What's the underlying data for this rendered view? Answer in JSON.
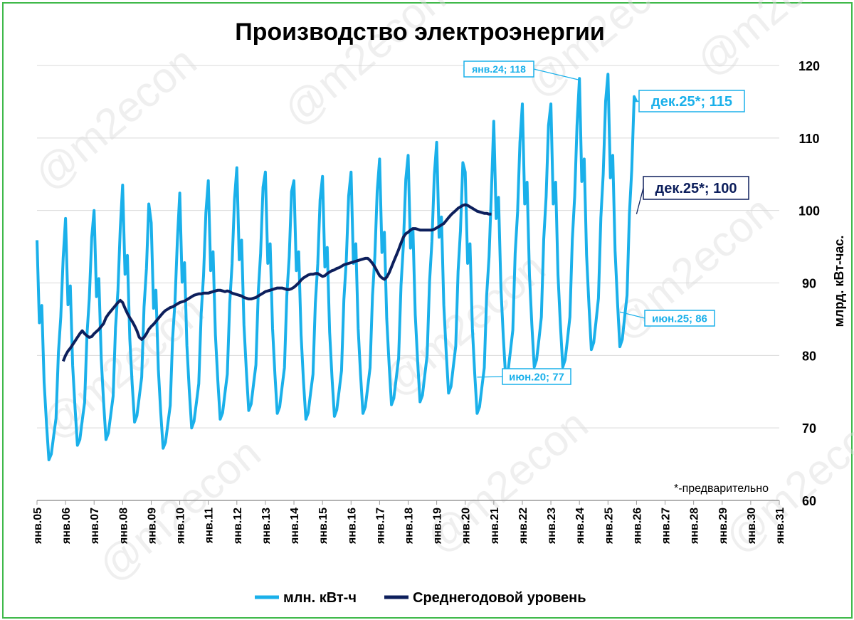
{
  "watermark": "@m2econ",
  "colors": {
    "monthly": "#1ab0ea",
    "average": "#0d1f5c",
    "grid": "#d9d9d9",
    "frame": "#3fb94a"
  },
  "chart_data": {
    "type": "line",
    "title": "Производство электроэнергии",
    "ylabel": "млрд. кВт-час.",
    "xlabel": "",
    "ylim": [
      60,
      120
    ],
    "yticks": [
      60,
      70,
      80,
      90,
      100,
      110,
      120
    ],
    "x_range_years": [
      2005,
      2031
    ],
    "x_tick_labels": [
      "янв.05",
      "янв.06",
      "янв.07",
      "янв.08",
      "янв.09",
      "янв.10",
      "янв.11",
      "янв.12",
      "янв.13",
      "янв.14",
      "янв.15",
      "янв.16",
      "янв.17",
      "янв.18",
      "янв.19",
      "янв.20",
      "янв.21",
      "янв.22",
      "янв.23",
      "янв.24",
      "янв.25",
      "янв.26",
      "янв.27",
      "янв.28",
      "янв.29",
      "янв.30",
      "янв.31"
    ],
    "legend": [
      "млн. кВт-ч",
      "Среднегодовой уровень"
    ],
    "legend_position": "bottom",
    "note": "*-предварительно",
    "series": [
      {
        "name": "млн. кВт-ч",
        "start": "2005-01",
        "seasonal_profile": [
          1.17,
          1.03,
          1.06,
          0.93,
          0.86,
          0.8,
          0.81,
          0.84,
          0.87,
          0.98,
          1.04,
          1.14
        ],
        "annual_levels": [
          82.0,
          84.5,
          85.5,
          88.5,
          84.0,
          87.5,
          89.0,
          90.5,
          90.0,
          89.0,
          89.5,
          90.0,
          91.5,
          92.0,
          93.5,
          90.0,
          96.0,
          98.0,
          98.0,
          101.0,
          101.5,
          101.0
        ],
        "last_value": 115
      },
      {
        "name": "Среднегодовой уровень",
        "start": "2005-12",
        "values": [
          79.2,
          80.0,
          80.6,
          81.0,
          81.5,
          82.0,
          82.5,
          83.0,
          83.4,
          83.0,
          82.7,
          82.5,
          82.6,
          83.0,
          83.3,
          83.6,
          84.0,
          84.4,
          85.2,
          85.7,
          86.1,
          86.5,
          86.9,
          87.3,
          87.6,
          87.3,
          86.5,
          85.8,
          85.2,
          84.7,
          84.1,
          83.4,
          82.5,
          82.2,
          82.5,
          83.0,
          83.6,
          84.0,
          84.3,
          84.7,
          85.1,
          85.5,
          85.9,
          86.2,
          86.4,
          86.6,
          86.7,
          86.9,
          87.1,
          87.3,
          87.4,
          87.5,
          87.7,
          87.9,
          88.1,
          88.3,
          88.4,
          88.5,
          88.5,
          88.6,
          88.6,
          88.6,
          88.7,
          88.8,
          88.9,
          89.0,
          89.0,
          88.9,
          88.8,
          88.9,
          88.8,
          88.6,
          88.5,
          88.4,
          88.3,
          88.2,
          88.0,
          87.9,
          87.8,
          87.8,
          87.9,
          88.0,
          88.2,
          88.4,
          88.6,
          88.8,
          88.9,
          89.0,
          89.1,
          89.2,
          89.3,
          89.3,
          89.3,
          89.2,
          89.1,
          89.1,
          89.2,
          89.4,
          89.7,
          90.0,
          90.4,
          90.7,
          90.9,
          91.1,
          91.2,
          91.2,
          91.3,
          91.3,
          91.1,
          90.9,
          91.0,
          91.3,
          91.5,
          91.7,
          91.8,
          92.0,
          92.1,
          92.3,
          92.5,
          92.6,
          92.7,
          92.8,
          92.9,
          93.0,
          93.1,
          93.2,
          93.3,
          93.4,
          93.4,
          93.1,
          92.7,
          92.2,
          91.6,
          91.0,
          90.7,
          90.5,
          90.8,
          91.4,
          92.2,
          93.0,
          93.8,
          94.6,
          95.5,
          96.3,
          96.8,
          97.0,
          97.3,
          97.5,
          97.5,
          97.4,
          97.3,
          97.3,
          97.3,
          97.3,
          97.3,
          97.3,
          97.4,
          97.6,
          97.8,
          98.0,
          98.2,
          98.6,
          99.0,
          99.4,
          99.7,
          100.0,
          100.3,
          100.5,
          100.7,
          100.8,
          100.7,
          100.5,
          100.3,
          100.1,
          99.9,
          99.8,
          99.7,
          99.6,
          99.6,
          99.5,
          99.5
        ]
      }
    ],
    "annotations": [
      {
        "label": "янв.24; 118",
        "series": "млн. кВт-ч",
        "value": 118
      },
      {
        "label": "дек.25*; 115",
        "series": "млн. кВт-ч",
        "value": 115
      },
      {
        "label": "дек.25*; 100",
        "series": "Среднегодовой уровень",
        "value": 100
      },
      {
        "label": "июн.25; 86",
        "series": "млн. кВт-ч",
        "value": 86
      },
      {
        "label": "июн.20; 77",
        "series": "млн. кВт-ч",
        "value": 77
      }
    ]
  }
}
